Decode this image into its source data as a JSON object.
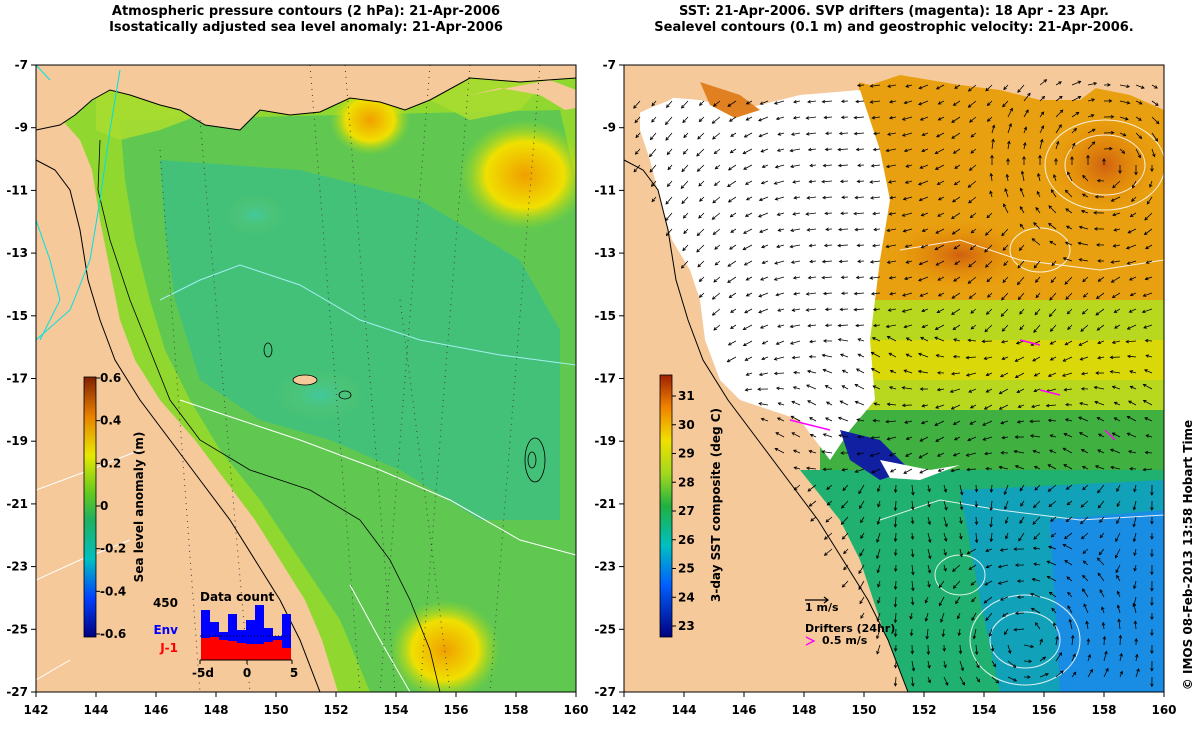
{
  "left_panel": {
    "title_line1": "Atmospheric pressure contours (2 hPa): 21-Apr-2006",
    "title_line2": "Isostatically adjusted sea level anomaly: 21-Apr-2006",
    "x_ticks": [
      "142",
      "144",
      "146",
      "148",
      "150",
      "152",
      "154",
      "156",
      "158",
      "160"
    ],
    "y_ticks": [
      "-7",
      "-9",
      "-11",
      "-13",
      "-15",
      "-17",
      "-19",
      "-21",
      "-23",
      "-25",
      "-27"
    ],
    "colorbar": {
      "title": "Sea level anomaly (m)",
      "labels": [
        "0.6",
        "0.4",
        "0.2",
        "0",
        "-0.2",
        "-0.4",
        "-0.6"
      ]
    },
    "data_count": {
      "title": "Data count",
      "max_label": "450",
      "series_env": "Env",
      "series_j1": "J-1",
      "x_labels": [
        "-5d",
        "0",
        "5"
      ],
      "env_color": "#0000ff",
      "j1_color": "#ff0000"
    },
    "land_color": "#f5c99a"
  },
  "right_panel": {
    "title_line1": "SST: 21-Apr-2006. SVP drifters (magenta): 18 Apr - 23 Apr.",
    "title_line2": "Sealevel contours (0.1 m) and geostrophic velocity: 21-Apr-2006.",
    "x_ticks": [
      "142",
      "144",
      "146",
      "148",
      "150",
      "152",
      "154",
      "156",
      "158",
      "160"
    ],
    "y_ticks": [
      "-7",
      "-9",
      "-11",
      "-13",
      "-15",
      "-17",
      "-19",
      "-21",
      "-23",
      "-25",
      "-27"
    ],
    "colorbar": {
      "title": "3-day SST composite (deg C)",
      "labels": [
        "31",
        "30",
        "29",
        "28",
        "27",
        "26",
        "25",
        "24",
        "23"
      ]
    },
    "velocity_scale_label": "1 m/s",
    "drifters_label": "Drifters (24hr)",
    "drifters_speed_label": "0.5 m/s",
    "drifter_color": "#ff00ff"
  },
  "credit": "© IMOS 08-Feb-2013 13:58 Hobart Time"
}
